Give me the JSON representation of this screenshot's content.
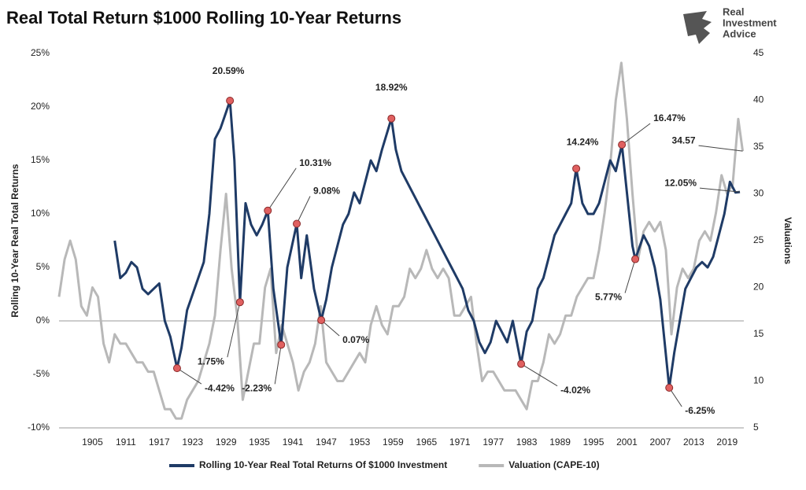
{
  "chart_data": {
    "type": "line",
    "title": "Real Total Return $1000 Rolling 10-Year Returns",
    "logo": [
      "Real",
      "Investment",
      "Advice"
    ],
    "y_label": "Rolling 10-Year Real Total Returns",
    "y2_label": "Valuations",
    "xlim": [
      1899,
      2022
    ],
    "xticks": [
      1905,
      1911,
      1917,
      1923,
      1929,
      1935,
      1941,
      1947,
      1953,
      1959,
      1965,
      1971,
      1977,
      1983,
      1989,
      1995,
      2001,
      2007,
      2013,
      2019
    ],
    "ylim": [
      -10,
      25
    ],
    "yticks": [
      {
        "value": -10,
        "label": "-10%"
      },
      {
        "value": -5,
        "label": "-5%"
      },
      {
        "value": 0,
        "label": "0%"
      },
      {
        "value": 5,
        "label": "5%"
      },
      {
        "value": 10,
        "label": "10%"
      },
      {
        "value": 15,
        "label": "15%"
      },
      {
        "value": 20,
        "label": "20%"
      },
      {
        "value": 25,
        "label": "25%"
      }
    ],
    "y2lim": [
      5,
      45
    ],
    "y2ticks": [
      5,
      10,
      15,
      20,
      25,
      30,
      35,
      40,
      45
    ],
    "zero_line": true,
    "series": [
      {
        "name": "Rolling 10-Year Real Total Returns Of $1000 Investment",
        "color": "#1f3b66",
        "x": [
          1909,
          1910,
          1911,
          1912,
          1913,
          1914,
          1915,
          1916,
          1917,
          1918,
          1919,
          1920.2,
          1921,
          1922,
          1923,
          1924,
          1925,
          1926,
          1927,
          1928,
          1929,
          1929.7,
          1930.5,
          1931.5,
          1932.5,
          1933.5,
          1934.5,
          1935.5,
          1936.5,
          1937.5,
          1938.3,
          1938.9,
          1940,
          1941.7,
          1942.5,
          1943.5,
          1944.8,
          1946.1,
          1947,
          1948,
          1949,
          1950,
          1951,
          1952,
          1953,
          1954,
          1955,
          1956,
          1957,
          1958.7,
          1959.5,
          1960.5,
          1961.5,
          1962.5,
          1963.5,
          1964.5,
          1965.5,
          1966.5,
          1967.5,
          1968.5,
          1969.5,
          1970.5,
          1971.5,
          1972.5,
          1973.5,
          1974.5,
          1975.5,
          1976.5,
          1977.5,
          1978.5,
          1979.5,
          1980.5,
          1982,
          1983,
          1984,
          1985,
          1986,
          1987,
          1988,
          1989,
          1990,
          1991,
          1991.9,
          1993,
          1994,
          1995,
          1996,
          1997,
          1998,
          1999,
          2000.1,
          2001,
          2002,
          2002.5,
          2004,
          2005,
          2006,
          2007,
          2008.6,
          2009.5,
          2010.5,
          2011.5,
          2012.5,
          2013.5,
          2014.5,
          2015.5,
          2016.5,
          2017.5,
          2018.5,
          2019.5,
          2020.5,
          2021.3
        ],
        "values": [
          7.5,
          4,
          4.5,
          5.5,
          5,
          3,
          2.5,
          3,
          3.5,
          0,
          -1.5,
          -4.42,
          -2.5,
          1,
          2.5,
          4,
          5.5,
          10,
          17,
          18,
          19.5,
          20.59,
          15,
          1.75,
          11,
          9,
          8,
          9,
          10.31,
          3,
          0,
          -2.23,
          5,
          9.08,
          4,
          8,
          3,
          0.07,
          2,
          5,
          7,
          9,
          10,
          12,
          11,
          13,
          15,
          14,
          16,
          18.92,
          16,
          14,
          13,
          12,
          11,
          10,
          9,
          8,
          7,
          6,
          5,
          4,
          3,
          1,
          0,
          -2,
          -3,
          -2,
          0,
          -1,
          -2,
          0,
          -4.02,
          -1,
          0,
          3,
          4,
          6,
          8,
          9,
          10,
          11,
          14.24,
          11,
          10,
          10,
          11,
          13,
          15,
          14,
          16.47,
          12,
          7,
          5.77,
          8,
          7,
          5,
          2,
          -6.25,
          -3,
          0,
          3,
          4,
          5,
          5.5,
          5,
          6,
          8,
          10,
          13,
          12,
          12.05
        ]
      },
      {
        "name": "Valuation (CAPE-10)",
        "color": "#b8b8b8",
        "axis": "y2",
        "x": [
          1899,
          1900,
          1901,
          1902,
          1903,
          1904,
          1905,
          1906,
          1907,
          1908,
          1909,
          1910,
          1911,
          1912,
          1913,
          1914,
          1915,
          1916,
          1917,
          1918,
          1919,
          1920,
          1921,
          1922,
          1923,
          1924,
          1925,
          1926,
          1927,
          1928,
          1929,
          1930,
          1931,
          1932,
          1933,
          1934,
          1935,
          1936,
          1937,
          1938,
          1939,
          1940,
          1941,
          1942,
          1943,
          1944,
          1945,
          1946,
          1947,
          1948,
          1949,
          1950,
          1951,
          1952,
          1953,
          1954,
          1955,
          1956,
          1957,
          1958,
          1959,
          1960,
          1961,
          1962,
          1963,
          1964,
          1965,
          1966,
          1967,
          1968,
          1969,
          1970,
          1971,
          1972,
          1973,
          1974,
          1975,
          1976,
          1977,
          1978,
          1979,
          1980,
          1981,
          1982,
          1983,
          1984,
          1985,
          1986,
          1987,
          1988,
          1989,
          1990,
          1991,
          1992,
          1993,
          1994,
          1995,
          1996,
          1997,
          1998,
          1999,
          2000,
          2001,
          2002,
          2003,
          2004,
          2005,
          2006,
          2007,
          2008,
          2009,
          2010,
          2011,
          2012,
          2013,
          2014,
          2015,
          2016,
          2017,
          2018,
          2019,
          2020,
          2021,
          2021.8
        ],
        "values": [
          19,
          23,
          25,
          23,
          18,
          17,
          20,
          19,
          14,
          12,
          15,
          14,
          14,
          13,
          12,
          12,
          11,
          11,
          9,
          7,
          7,
          6,
          6,
          8,
          9,
          10,
          12,
          14,
          17,
          24,
          30,
          22,
          17,
          8,
          11,
          14,
          14,
          20,
          22,
          13,
          16,
          14,
          12,
          9,
          11,
          12,
          14,
          18,
          12,
          11,
          10,
          10,
          11,
          12,
          13,
          12,
          16,
          18,
          16,
          15,
          18,
          18,
          19,
          22,
          21,
          22,
          24,
          22,
          21,
          22,
          21,
          17,
          17,
          18,
          19,
          14,
          10,
          11,
          11,
          10,
          9,
          9,
          9,
          8,
          7,
          10,
          10,
          12,
          15,
          14,
          15,
          17,
          17,
          19,
          20,
          21,
          21,
          24,
          28,
          33,
          40,
          44,
          38,
          30,
          23,
          26,
          27,
          26,
          27,
          24,
          15,
          20,
          22,
          21,
          22,
          25,
          26,
          25,
          28,
          32,
          30,
          31,
          38,
          34.57
        ]
      }
    ],
    "annotations": [
      {
        "x": 1920.2,
        "value": -4.42,
        "label": "-4.42%",
        "marker": true
      },
      {
        "x": 1929.7,
        "value": 20.59,
        "label": "20.59%",
        "marker": true
      },
      {
        "x": 1931.5,
        "value": 1.75,
        "label": "1.75%",
        "marker": true
      },
      {
        "x": 1936.5,
        "value": 10.31,
        "label": "10.31%",
        "marker": true
      },
      {
        "x": 1938.9,
        "value": -2.23,
        "label": "-2.23%",
        "marker": true
      },
      {
        "x": 1941.7,
        "value": 9.08,
        "label": "9.08%",
        "marker": true
      },
      {
        "x": 1946.1,
        "value": 0.07,
        "label": "0.07%",
        "marker": true
      },
      {
        "x": 1958.7,
        "value": 18.92,
        "label": "18.92%",
        "marker": true
      },
      {
        "x": 1982,
        "value": -4.02,
        "label": "-4.02%",
        "marker": true
      },
      {
        "x": 1991.9,
        "value": 14.24,
        "label": "14.24%",
        "marker": true
      },
      {
        "x": 2000.1,
        "value": 16.47,
        "label": "16.47%",
        "marker": true
      },
      {
        "x": 2002.5,
        "value": 5.77,
        "label": "5.77%",
        "marker": true
      },
      {
        "x": 2008.6,
        "value": -6.25,
        "label": "-6.25%",
        "marker": true
      },
      {
        "x": 2021.3,
        "value": 12.05,
        "label": "12.05%",
        "marker": false
      },
      {
        "x": 2021.8,
        "value": 34.57,
        "label": "34.57",
        "marker": false,
        "axis": "y2"
      }
    ],
    "legend": "bottom"
  }
}
